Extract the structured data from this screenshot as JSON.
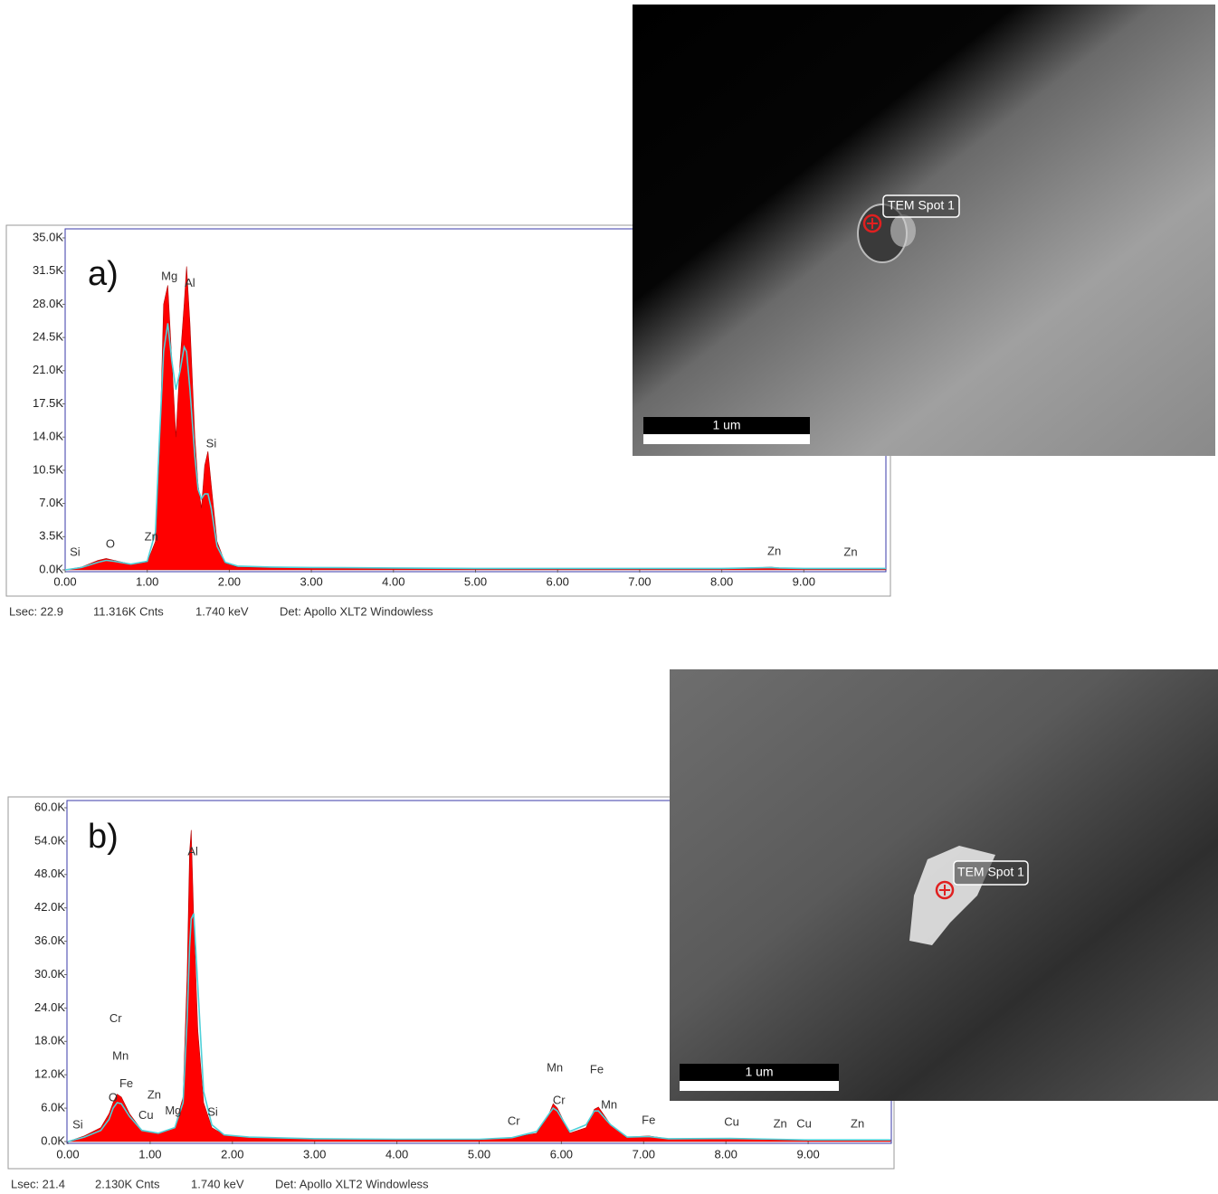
{
  "chart_data": [
    {
      "type": "area",
      "panel_label": "a)",
      "x": [
        0,
        0.2,
        0.4,
        0.5,
        0.6,
        0.8,
        1.0,
        1.1,
        1.15,
        1.2,
        1.25,
        1.3,
        1.35,
        1.4,
        1.45,
        1.48,
        1.52,
        1.58,
        1.62,
        1.66,
        1.7,
        1.74,
        1.78,
        1.85,
        1.95,
        2.1,
        2.5,
        3.0,
        4.0,
        5.0,
        6.0,
        7.0,
        8.0,
        8.6,
        8.7,
        9.0,
        10.0
      ],
      "series": [
        {
          "color": "#ff0000",
          "values": [
            0,
            300,
            1000,
            1200,
            1000,
            600,
            800,
            3000,
            12000,
            28000,
            30000,
            22000,
            14000,
            22000,
            28000,
            32000,
            26000,
            14000,
            9000,
            6500,
            11000,
            12500,
            9000,
            3000,
            700,
            300,
            250,
            200,
            150,
            100,
            100,
            100,
            100,
            300,
            200,
            100,
            100
          ]
        },
        {
          "color": "#4fd0d8",
          "values": [
            0,
            250,
            800,
            1000,
            900,
            600,
            900,
            4000,
            14000,
            23000,
            26000,
            22000,
            19000,
            21000,
            23500,
            23000,
            19000,
            12000,
            8500,
            7500,
            8000,
            8000,
            6500,
            2500,
            800,
            400,
            300,
            250,
            200,
            150,
            150,
            150,
            150,
            250,
            200,
            150,
            150
          ]
        }
      ],
      "xlim": [
        0,
        10
      ],
      "xticks": [
        {
          "value": 0,
          "label": "0.00"
        },
        {
          "value": 1,
          "label": "1.00"
        },
        {
          "value": 2,
          "label": "2.00"
        },
        {
          "value": 3,
          "label": "3.00"
        },
        {
          "value": 4,
          "label": "4.00"
        },
        {
          "value": 5,
          "label": "5.00"
        },
        {
          "value": 6,
          "label": "6.00"
        },
        {
          "value": 7,
          "label": "7.00"
        },
        {
          "value": 8,
          "label": "8.00"
        },
        {
          "value": 9,
          "label": "9.00"
        }
      ],
      "ylim": [
        0,
        35000
      ],
      "yticks": [
        {
          "value": 0,
          "label": "0.0K"
        },
        {
          "value": 3500,
          "label": "3.5K"
        },
        {
          "value": 7000,
          "label": "7.0K"
        },
        {
          "value": 10500,
          "label": "10.5K"
        },
        {
          "value": 14000,
          "label": "14.0K"
        },
        {
          "value": 17500,
          "label": "17.5K"
        },
        {
          "value": 21000,
          "label": "21.0K"
        },
        {
          "value": 24500,
          "label": "24.5K"
        },
        {
          "value": 28000,
          "label": "28.0K"
        },
        {
          "value": 31500,
          "label": "31.5K"
        },
        {
          "value": 35000,
          "label": "35.0K"
        }
      ],
      "peak_labels": [
        {
          "text": "Si",
          "x": 0.12,
          "y": 1800
        },
        {
          "text": "O",
          "x": 0.55,
          "y": 2670
        },
        {
          "text": "Zn",
          "x": 1.05,
          "y": 3430
        },
        {
          "text": "Mg",
          "x": 1.27,
          "y": 30900
        },
        {
          "text": "Al",
          "x": 1.52,
          "y": 30200
        },
        {
          "text": "Si",
          "x": 1.78,
          "y": 13250
        },
        {
          "text": "Zn",
          "x": 8.64,
          "y": 1900
        },
        {
          "text": "Zn",
          "x": 9.57,
          "y": 1800
        }
      ],
      "footer": [
        "Lsec: 22.9",
        "11.316K Cnts",
        "1.740 keV",
        "Det: Apollo XLT2 Windowless"
      ],
      "image_label": "TEM Spot 1",
      "scale_bar": "1 um"
    },
    {
      "type": "area",
      "panel_label": "b)",
      "x": [
        0,
        0.2,
        0.4,
        0.5,
        0.55,
        0.6,
        0.65,
        0.75,
        0.9,
        1.1,
        1.3,
        1.4,
        1.45,
        1.48,
        1.5,
        1.53,
        1.58,
        1.65,
        1.75,
        1.9,
        2.2,
        3.0,
        4.0,
        5.0,
        5.4,
        5.7,
        5.85,
        5.9,
        5.95,
        6.1,
        6.3,
        6.4,
        6.45,
        6.6,
        6.8,
        7.06,
        7.3,
        8.05,
        8.6,
        9.0,
        10.0
      ],
      "series": [
        {
          "color": "#ff0000",
          "values": [
            0,
            1000,
            2500,
            5000,
            7000,
            8500,
            8000,
            5000,
            2000,
            1500,
            2500,
            8000,
            30000,
            52000,
            56000,
            40000,
            20000,
            7000,
            2500,
            1200,
            800,
            500,
            400,
            400,
            700,
            1500,
            5000,
            6800,
            6000,
            1500,
            2500,
            5800,
            6200,
            3000,
            800,
            1000,
            500,
            600,
            400,
            300,
            300
          ]
        },
        {
          "color": "#4fd0d8",
          "values": [
            0,
            800,
            2000,
            4000,
            6000,
            7000,
            6800,
            4500,
            2000,
            1500,
            2500,
            7000,
            22000,
            35000,
            40000,
            41000,
            28000,
            9000,
            3000,
            1200,
            800,
            500,
            400,
            400,
            700,
            1800,
            5000,
            6000,
            5500,
            1800,
            3000,
            5500,
            5500,
            3000,
            800,
            900,
            500,
            550,
            400,
            300,
            300
          ]
        }
      ],
      "xlim": [
        0,
        10
      ],
      "xticks": [
        {
          "value": 0,
          "label": "0.00"
        },
        {
          "value": 1,
          "label": "1.00"
        },
        {
          "value": 2,
          "label": "2.00"
        },
        {
          "value": 3,
          "label": "3.00"
        },
        {
          "value": 4,
          "label": "4.00"
        },
        {
          "value": 5,
          "label": "5.00"
        },
        {
          "value": 6,
          "label": "6.00"
        },
        {
          "value": 7,
          "label": "7.00"
        },
        {
          "value": 8,
          "label": "8.00"
        },
        {
          "value": 9,
          "label": "9.00"
        }
      ],
      "ylim": [
        0,
        60000
      ],
      "yticks": [
        {
          "value": 0,
          "label": "0.0K"
        },
        {
          "value": 6000,
          "label": "6.0K"
        },
        {
          "value": 12000,
          "label": "12.0K"
        },
        {
          "value": 18000,
          "label": "18.0K"
        },
        {
          "value": 24000,
          "label": "24.0K"
        },
        {
          "value": 30000,
          "label": "30.0K"
        },
        {
          "value": 36000,
          "label": "36.0K"
        },
        {
          "value": 42000,
          "label": "42.0K"
        },
        {
          "value": 48000,
          "label": "48.0K"
        },
        {
          "value": 54000,
          "label": "54.0K"
        },
        {
          "value": 60000,
          "label": "60.0K"
        }
      ],
      "peak_labels": [
        {
          "text": "Si",
          "x": 0.12,
          "y": 2900
        },
        {
          "text": "Cr",
          "x": 0.58,
          "y": 22000
        },
        {
          "text": "Mn",
          "x": 0.64,
          "y": 15300
        },
        {
          "text": "Fe",
          "x": 0.71,
          "y": 10300
        },
        {
          "text": "O",
          "x": 0.55,
          "y": 7800
        },
        {
          "text": "Zn",
          "x": 1.05,
          "y": 8300
        },
        {
          "text": "Cu",
          "x": 0.95,
          "y": 4600
        },
        {
          "text": "Mg",
          "x": 1.28,
          "y": 5400
        },
        {
          "text": "Al",
          "x": 1.52,
          "y": 52000
        },
        {
          "text": "Si",
          "x": 1.76,
          "y": 5200
        },
        {
          "text": "Cr",
          "x": 5.42,
          "y": 3600
        },
        {
          "text": "Mn",
          "x": 5.92,
          "y": 13200
        },
        {
          "text": "Cr",
          "x": 5.97,
          "y": 7300
        },
        {
          "text": "Fe",
          "x": 6.43,
          "y": 12800
        },
        {
          "text": "Mn",
          "x": 6.58,
          "y": 6500
        },
        {
          "text": "Fe",
          "x": 7.06,
          "y": 3700
        },
        {
          "text": "Cu",
          "x": 8.07,
          "y": 3400
        },
        {
          "text": "Zn",
          "x": 8.66,
          "y": 3100
        },
        {
          "text": "Cu",
          "x": 8.95,
          "y": 3100
        },
        {
          "text": "Zn",
          "x": 9.6,
          "y": 3100
        }
      ],
      "footer": [
        "Lsec: 21.4",
        "2.130K Cnts",
        "1.740 keV",
        "Det: Apollo XLT2 Windowless"
      ],
      "image_label": "TEM Spot 1",
      "scale_bar": "1 um"
    }
  ]
}
